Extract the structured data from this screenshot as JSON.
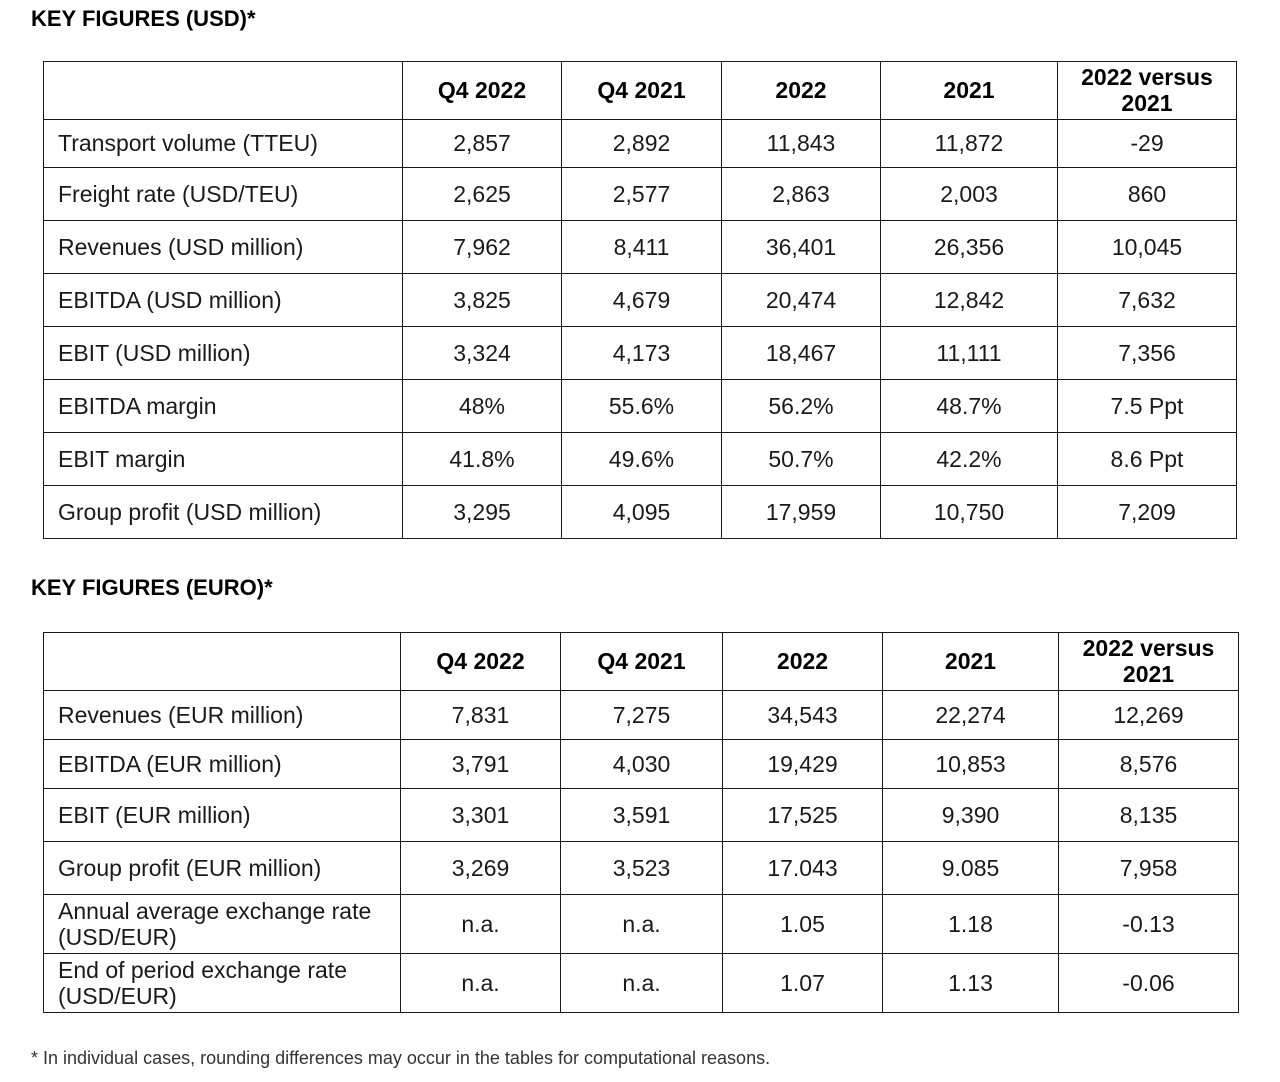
{
  "usd_section": {
    "title": "KEY FIGURES (USD)*",
    "headers": [
      "",
      "Q4 2022",
      "Q4 2021",
      "2022",
      "2021",
      "2022 versus 2021"
    ],
    "rows": [
      {
        "label": "Transport volume (TTEU)",
        "values": [
          "2,857",
          "2,892",
          "11,843",
          "11,872",
          "-29"
        ]
      },
      {
        "label": "Freight rate (USD/TEU)",
        "values": [
          "2,625",
          "2,577",
          "2,863",
          "2,003",
          "860"
        ]
      },
      {
        "label": "Revenues (USD million)",
        "values": [
          "7,962",
          "8,411",
          "36,401",
          "26,356",
          "10,045"
        ]
      },
      {
        "label": "EBITDA (USD million)",
        "values": [
          "3,825",
          "4,679",
          "20,474",
          "12,842",
          "7,632"
        ]
      },
      {
        "label": "EBIT (USD million)",
        "values": [
          "3,324",
          "4,173",
          "18,467",
          "11,111",
          "7,356"
        ]
      },
      {
        "label": "EBITDA margin",
        "values": [
          "48%",
          "55.6%",
          "56.2%",
          "48.7%",
          "7.5 Ppt"
        ]
      },
      {
        "label": "EBIT margin",
        "values": [
          "41.8%",
          "49.6%",
          "50.7%",
          "42.2%",
          "8.6 Ppt"
        ]
      },
      {
        "label": "Group profit (USD million)",
        "values": [
          "3,295",
          "4,095",
          "17,959",
          "10,750",
          "7,209"
        ]
      }
    ]
  },
  "eur_section": {
    "title": "KEY FIGURES (EURO)*",
    "headers": [
      "",
      "Q4 2022",
      "Q4 2021",
      "2022",
      "2021",
      "2022 versus 2021"
    ],
    "rows": [
      {
        "label": "Revenues (EUR million)",
        "values": [
          "7,831",
          "7,275",
          "34,543",
          "22,274",
          "12,269"
        ]
      },
      {
        "label": "EBITDA (EUR million)",
        "values": [
          "3,791",
          "4,030",
          "19,429",
          "10,853",
          "8,576"
        ]
      },
      {
        "label": "EBIT (EUR million)",
        "values": [
          "3,301",
          "3,591",
          "17,525",
          "9,390",
          "8,135"
        ]
      },
      {
        "label": "Group profit (EUR million)",
        "values": [
          "3,269",
          "3,523",
          "17.043",
          "9.085",
          "7,958"
        ]
      },
      {
        "label": "Annual average exchange rate (USD/EUR)",
        "values": [
          "n.a.",
          "n.a.",
          "1.05",
          "1.18",
          "-0.13"
        ]
      },
      {
        "label": "End of period exchange rate (USD/EUR)",
        "values": [
          "n.a.",
          "n.a.",
          "1.07",
          "1.13",
          "-0.06"
        ]
      }
    ]
  },
  "footnote": "* In individual cases, rounding differences may occur in the tables for computational reasons."
}
